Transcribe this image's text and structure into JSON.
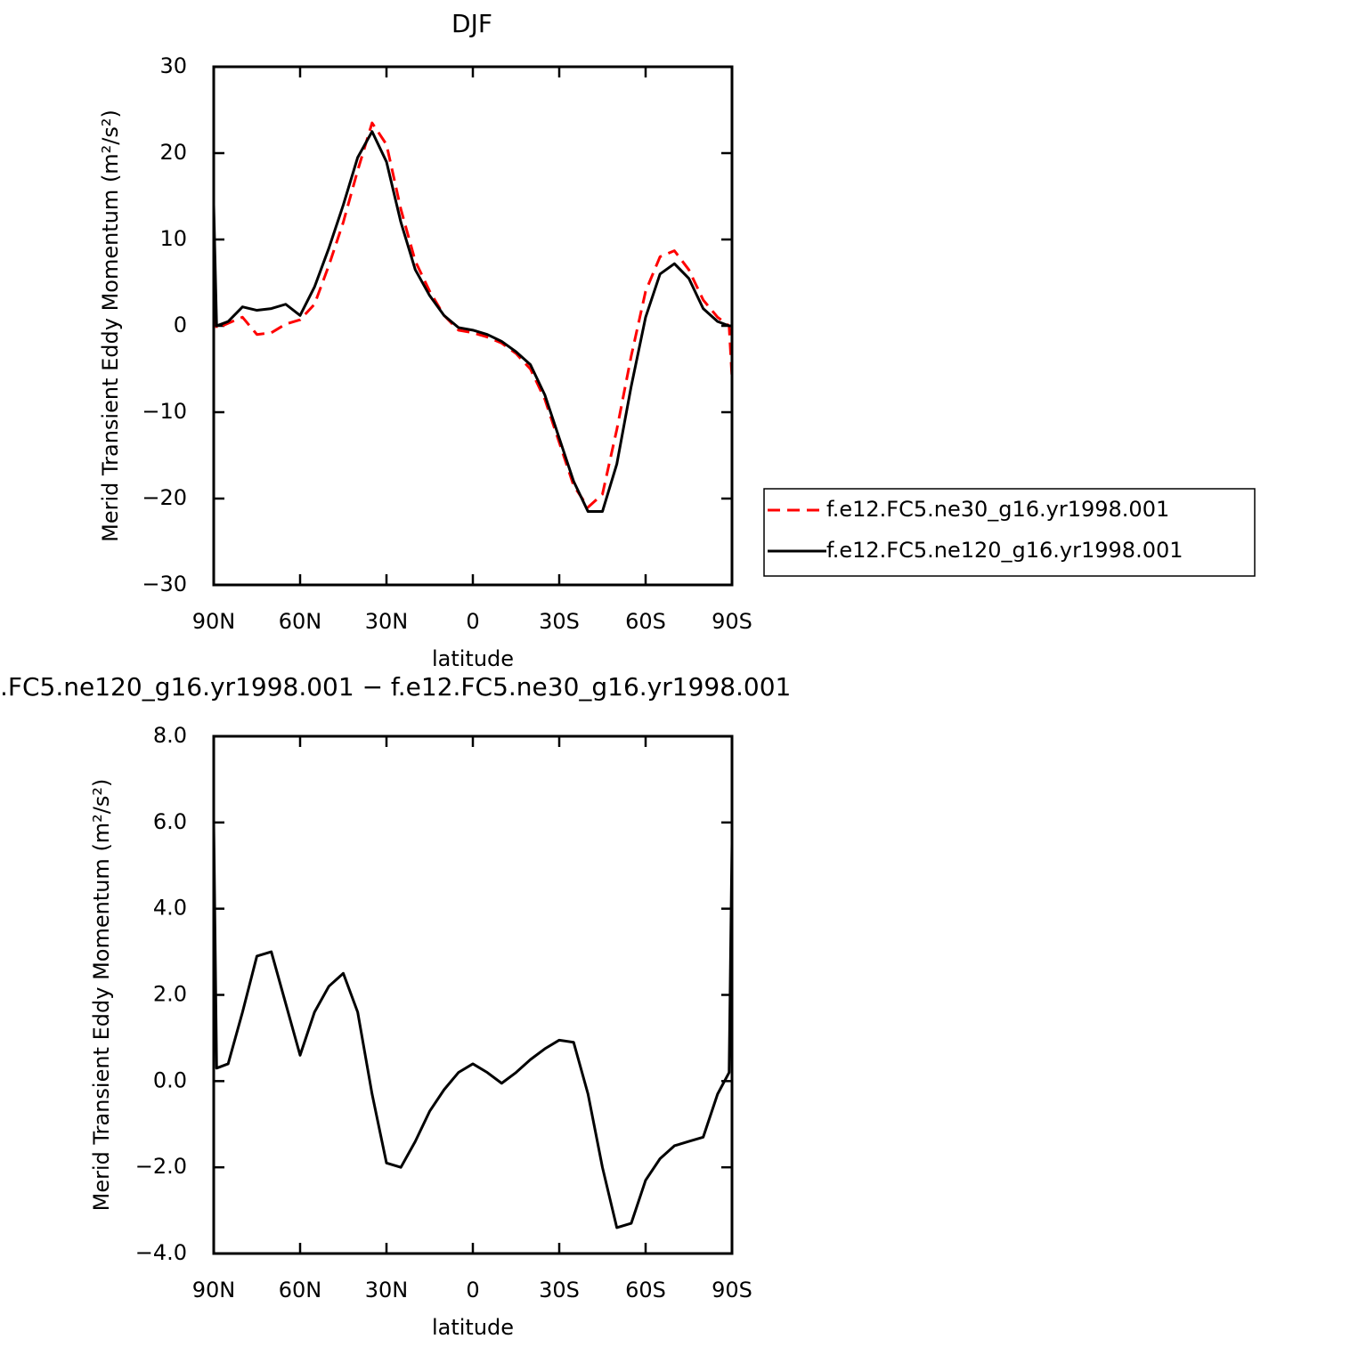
{
  "chart_data": [
    {
      "type": "line",
      "title": "DJF",
      "x_label": "latitude",
      "y_label": "Merid Transient Eddy Momentum (m²/s²)",
      "x": [
        90,
        89,
        85,
        80,
        75,
        70,
        65,
        60,
        55,
        50,
        45,
        40,
        35,
        30,
        25,
        20,
        15,
        10,
        5,
        0,
        -5,
        -10,
        -15,
        -20,
        -25,
        -30,
        -35,
        -40,
        -45,
        -50,
        -55,
        -60,
        -65,
        -70,
        -75,
        -80,
        -85,
        -89,
        -90
      ],
      "series": [
        {
          "name": "f.e12.FC5.ne30_g16.yr1998.001",
          "color": "#ff0000",
          "dashed": true,
          "values": [
            8,
            -0.3,
            0.3,
            1.0,
            -1.0,
            -0.8,
            0.2,
            0.7,
            2.5,
            7,
            12,
            18,
            23.5,
            21,
            13.5,
            7.5,
            4,
            1.2,
            -0.5,
            -0.8,
            -1.3,
            -2,
            -3.2,
            -5,
            -8.5,
            -13.5,
            -18.5,
            -21,
            -19.5,
            -12,
            -3.5,
            4,
            8,
            8.7,
            6.5,
            3,
            1,
            0,
            -6
          ]
        },
        {
          "name": "f.e12.FC5.ne120_g16.yr1998.001",
          "color": "#000000",
          "dashed": false,
          "values": [
            14,
            0,
            0.5,
            2.2,
            1.8,
            2.0,
            2.5,
            1.2,
            4.5,
            9,
            14,
            19.5,
            22.5,
            19,
            12,
            6.5,
            3.5,
            1.2,
            -0.2,
            -0.5,
            -1,
            -1.8,
            -3,
            -4.5,
            -8,
            -13,
            -18,
            -21.5,
            -21.5,
            -16,
            -7,
            1,
            6,
            7.2,
            5.5,
            2,
            0.5,
            0,
            0
          ]
        }
      ],
      "xlim": [
        90,
        -90
      ],
      "xticks": [
        {
          "value": 90,
          "label": "90N"
        },
        {
          "value": 60,
          "label": "60N"
        },
        {
          "value": 30,
          "label": "30N"
        },
        0,
        {
          "value": -30,
          "label": "30S"
        },
        {
          "value": -60,
          "label": "60S"
        },
        {
          "value": -90,
          "label": "90S"
        }
      ],
      "ylim": [
        -30,
        30
      ],
      "yticks": [
        {
          "value": -30,
          "label": "−30"
        },
        {
          "value": -20,
          "label": "−20"
        },
        {
          "value": -10,
          "label": "−10"
        },
        0,
        10,
        20,
        30
      ],
      "legend": "right"
    },
    {
      "type": "line",
      "title": ".FC5.ne120_g16.yr1998.001 − f.e12.FC5.ne30_g16.yr1998.001",
      "x_label": "latitude",
      "y_label": "Merid Transient Eddy Momentum (m²/s²)",
      "x": [
        90,
        89,
        85,
        80,
        75,
        70,
        65,
        60,
        55,
        50,
        45,
        40,
        35,
        30,
        25,
        20,
        15,
        10,
        5,
        0,
        -5,
        -10,
        -15,
        -20,
        -25,
        -30,
        -35,
        -40,
        -45,
        -50,
        -55,
        -60,
        -65,
        -70,
        -75,
        -80,
        -85,
        -89,
        -90
      ],
      "color": "#000000",
      "values": [
        6,
        0.3,
        0.4,
        1.6,
        2.9,
        3.0,
        1.8,
        0.6,
        1.6,
        2.2,
        2.5,
        1.6,
        -0.3,
        -1.9,
        -2.0,
        -1.4,
        -0.7,
        -0.2,
        0.2,
        0.4,
        0.2,
        -0.05,
        0.2,
        0.5,
        0.75,
        0.95,
        0.9,
        -0.3,
        -2.0,
        -3.4,
        -3.3,
        -2.3,
        -1.8,
        -1.5,
        -1.4,
        -1.3,
        -0.3,
        0.2,
        5.5
      ],
      "xlim": [
        90,
        -90
      ],
      "xticks": [
        {
          "value": 90,
          "label": "90N"
        },
        {
          "value": 60,
          "label": "60N"
        },
        {
          "value": 30,
          "label": "30N"
        },
        0,
        {
          "value": -30,
          "label": "30S"
        },
        {
          "value": -60,
          "label": "60S"
        },
        {
          "value": -90,
          "label": "90S"
        }
      ],
      "ylim": [
        -4,
        8
      ],
      "yticks": [
        {
          "value": -4,
          "label": "−4.0"
        },
        {
          "value": -2,
          "label": "−2.0"
        },
        {
          "value": 0,
          "label": "0.0"
        },
        {
          "value": 2,
          "label": "2.0"
        },
        {
          "value": 4,
          "label": "4.0"
        },
        {
          "value": 6,
          "label": "6.0"
        },
        {
          "value": 8,
          "label": "8.0"
        }
      ]
    }
  ]
}
